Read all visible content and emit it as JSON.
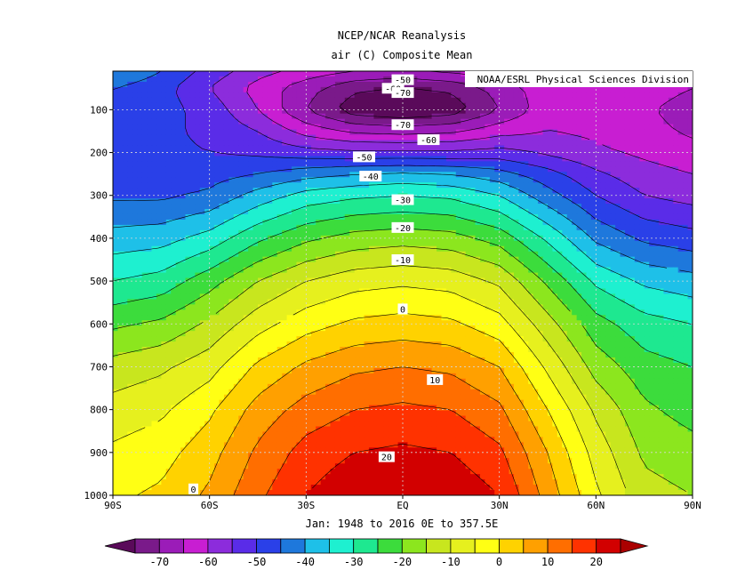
{
  "chart_data": {
    "type": "contour",
    "title": "NCEP/NCAR Reanalysis",
    "subtitle": "air (C) Composite Mean",
    "source": "NOAA/ESRL Physical Sciences Division",
    "xlabel": "Jan: 1948 to 2016 0E to 357.5E",
    "x_ticks": [
      "90S",
      "60S",
      "30S",
      "EQ",
      "30N",
      "60N",
      "90N"
    ],
    "x_values": [
      -90,
      -60,
      -30,
      0,
      30,
      60,
      90
    ],
    "y_ticks": [
      "100",
      "200",
      "300",
      "400",
      "500",
      "600",
      "700",
      "800",
      "900",
      "1000"
    ],
    "y_values": [
      100,
      200,
      300,
      400,
      500,
      600,
      700,
      800,
      900,
      1000
    ],
    "xlim": [
      -90,
      90
    ],
    "ylim": [
      10,
      1000
    ],
    "grid": true,
    "contour_interval": 5,
    "contour_labels": [
      {
        "text": "-50",
        "lat": 0,
        "p": 30
      },
      {
        "text": "-60",
        "lat": -3,
        "p": 50
      },
      {
        "text": "-70",
        "lat": 0,
        "p": 60
      },
      {
        "text": "-70",
        "lat": 0,
        "p": 135
      },
      {
        "text": "-60",
        "lat": 8,
        "p": 170
      },
      {
        "text": "-50",
        "lat": -12,
        "p": 210
      },
      {
        "text": "-40",
        "lat": -10,
        "p": 255
      },
      {
        "text": "-30",
        "lat": 0,
        "p": 310
      },
      {
        "text": "-20",
        "lat": 0,
        "p": 375
      },
      {
        "text": "-10",
        "lat": 0,
        "p": 450
      },
      {
        "text": "0",
        "lat": 0,
        "p": 565
      },
      {
        "text": "10",
        "lat": 10,
        "p": 730
      },
      {
        "text": "20",
        "lat": -5,
        "p": 910
      },
      {
        "text": "0",
        "lat": -65,
        "p": 985
      }
    ],
    "profiles": [
      {
        "p": 10,
        "values": [
          -40,
          -45,
          -52,
          -58,
          -62,
          -65,
          -66,
          -64,
          -62,
          -60,
          -60,
          -60,
          -62
        ]
      },
      {
        "p": 50,
        "values": [
          -45,
          -48,
          -55,
          -62,
          -68,
          -74,
          -76,
          -74,
          -68,
          -62,
          -60,
          -62,
          -65
        ]
      },
      {
        "p": 100,
        "values": [
          -48,
          -48,
          -52,
          -60,
          -70,
          -78,
          -80,
          -78,
          -70,
          -62,
          -62,
          -64,
          -68
        ]
      },
      {
        "p": 150,
        "values": [
          -49,
          -49,
          -51,
          -55,
          -62,
          -66,
          -67,
          -66,
          -62,
          -60,
          -61,
          -63,
          -66
        ]
      },
      {
        "p": 200,
        "values": [
          -49,
          -49,
          -50,
          -51,
          -53,
          -54,
          -54,
          -54,
          -53,
          -56,
          -59,
          -61,
          -63
        ]
      },
      {
        "p": 250,
        "values": [
          -48,
          -48,
          -47,
          -45,
          -42,
          -40,
          -39,
          -40,
          -43,
          -48,
          -54,
          -58,
          -60
        ]
      },
      {
        "p": 300,
        "values": [
          -46,
          -46,
          -44,
          -38,
          -33,
          -31,
          -30,
          -31,
          -35,
          -43,
          -50,
          -55,
          -57
        ]
      },
      {
        "p": 400,
        "values": [
          -38,
          -37,
          -33,
          -26,
          -21,
          -18,
          -17,
          -18,
          -22,
          -31,
          -41,
          -46,
          -48
        ]
      },
      {
        "p": 500,
        "values": [
          -30,
          -28,
          -22,
          -15,
          -10,
          -7,
          -6,
          -7,
          -11,
          -21,
          -31,
          -36,
          -38
        ]
      },
      {
        "p": 600,
        "values": [
          -21,
          -19,
          -14,
          -7,
          -2,
          1,
          2,
          1,
          -3,
          -13,
          -23,
          -28,
          -30
        ]
      },
      {
        "p": 700,
        "values": [
          -13,
          -11,
          -7,
          1,
          6,
          9,
          10,
          9,
          5,
          -6,
          -17,
          -23,
          -25
        ]
      },
      {
        "p": 800,
        "values": [
          -8,
          -6,
          -1,
          7,
          12,
          15,
          16,
          15,
          11,
          0,
          -11,
          -19,
          -22
        ]
      },
      {
        "p": 900,
        "values": [
          -4,
          -2,
          3,
          11,
          17,
          20,
          21,
          20,
          16,
          5,
          -7,
          -16,
          -18
        ]
      },
      {
        "p": 1000,
        "values": [
          -1,
          1,
          6,
          14,
          20,
          24,
          25,
          24,
          20,
          8,
          -4,
          -13,
          -15
        ]
      }
    ],
    "lats": [
      -90,
      -75,
      -60,
      -45,
      -30,
      -15,
      0,
      15,
      30,
      45,
      60,
      75,
      90
    ],
    "colorbar": {
      "ticks": [
        "-70",
        "-60",
        "-50",
        "-40",
        "-30",
        "-20",
        "-10",
        "0",
        "10",
        "20"
      ],
      "levels": [
        -75,
        -70,
        -65,
        -60,
        -55,
        -50,
        -45,
        -40,
        -35,
        -30,
        -25,
        -20,
        -15,
        -10,
        -5,
        0,
        5,
        10,
        15,
        20,
        25
      ],
      "colors": [
        "#5a0a5a",
        "#7a1a8a",
        "#9b1cb8",
        "#c81ed2",
        "#8c2cdc",
        "#5a2ce8",
        "#2a40e8",
        "#1e78dc",
        "#1ec0e8",
        "#1ef0d0",
        "#1ee890",
        "#3cdc3c",
        "#8ce61e",
        "#c8e61e",
        "#e6f01e",
        "#ffff14",
        "#ffd200",
        "#ffa000",
        "#ff6e00",
        "#ff3200",
        "#d20000",
        "#aa0000"
      ]
    }
  }
}
